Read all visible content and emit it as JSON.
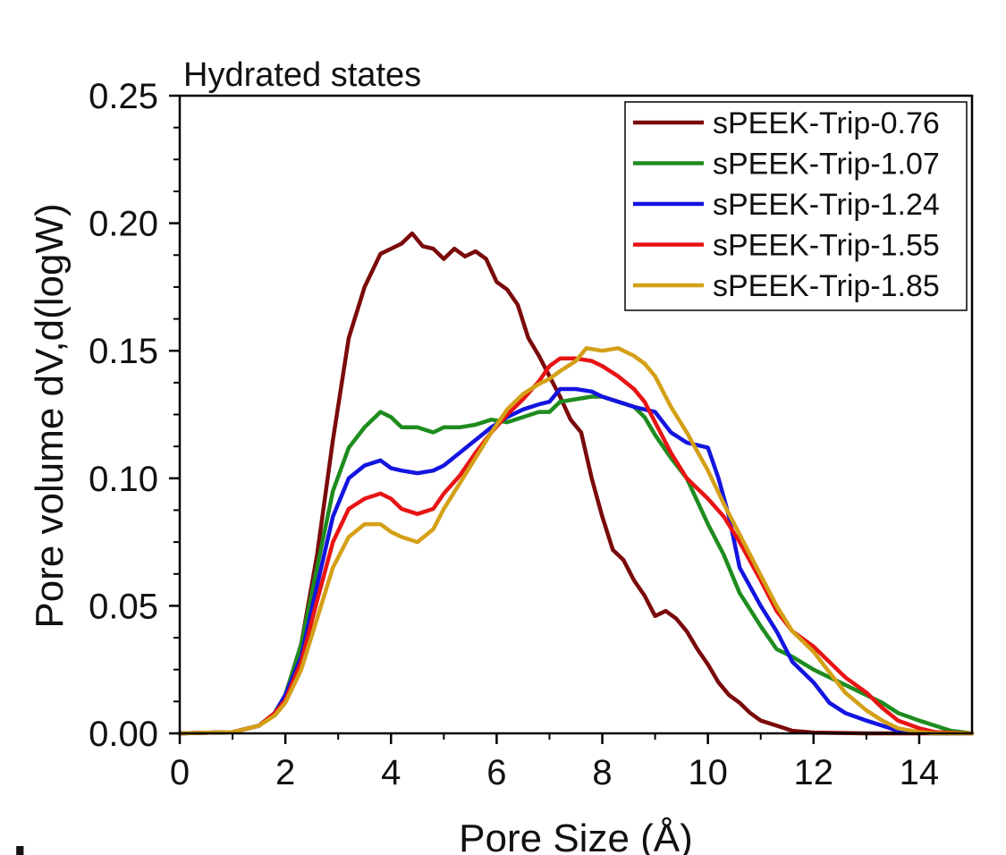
{
  "chart_data": {
    "type": "line",
    "title": "Hydrated states",
    "xlabel": "Pore Size (Å)",
    "ylabel": "Pore volume dV,d(logW)",
    "xlim": [
      0,
      15
    ],
    "ylim": [
      0,
      0.25
    ],
    "xticks": [
      0,
      2,
      4,
      6,
      8,
      10,
      12,
      14
    ],
    "xtick_labels": [
      "0",
      "2",
      "4",
      "6",
      "8",
      "10",
      "12",
      "14"
    ],
    "yticks": [
      0,
      0.05,
      0.1,
      0.15,
      0.2,
      0.25
    ],
    "ytick_labels": [
      "0.00",
      "0.05",
      "0.10",
      "0.15",
      "0.20",
      "0.25"
    ],
    "legend_position": "top-right",
    "grid": false,
    "panel_label": "b",
    "series": [
      {
        "name": "sPEEK-Trip-0.76",
        "color": "#7b0a0a",
        "x": [
          0,
          1.0,
          1.5,
          1.8,
          2.0,
          2.3,
          2.6,
          2.9,
          3.2,
          3.5,
          3.8,
          4.0,
          4.2,
          4.4,
          4.6,
          4.8,
          5.0,
          5.2,
          5.4,
          5.6,
          5.8,
          6.0,
          6.2,
          6.4,
          6.6,
          6.8,
          7.0,
          7.2,
          7.4,
          7.6,
          7.8,
          8.0,
          8.2,
          8.4,
          8.6,
          8.8,
          9.0,
          9.2,
          9.4,
          9.6,
          9.8,
          10.0,
          10.2,
          10.4,
          10.6,
          10.8,
          11.0,
          11.3,
          11.6,
          12.0,
          13.0,
          15.0
        ],
        "y": [
          0,
          0.0005,
          0.003,
          0.008,
          0.015,
          0.035,
          0.07,
          0.115,
          0.155,
          0.175,
          0.188,
          0.19,
          0.192,
          0.196,
          0.191,
          0.19,
          0.186,
          0.19,
          0.187,
          0.189,
          0.186,
          0.177,
          0.174,
          0.168,
          0.155,
          0.148,
          0.14,
          0.132,
          0.123,
          0.118,
          0.1,
          0.085,
          0.072,
          0.068,
          0.06,
          0.054,
          0.046,
          0.048,
          0.045,
          0.04,
          0.033,
          0.027,
          0.02,
          0.015,
          0.012,
          0.008,
          0.005,
          0.003,
          0.001,
          0.0003,
          0,
          0
        ]
      },
      {
        "name": "sPEEK-Trip-1.07",
        "color": "#1e8c1e",
        "x": [
          0,
          1.0,
          1.5,
          1.8,
          2.0,
          2.3,
          2.6,
          2.9,
          3.2,
          3.5,
          3.8,
          4.0,
          4.2,
          4.5,
          4.8,
          5.0,
          5.3,
          5.6,
          5.9,
          6.2,
          6.5,
          6.8,
          7.0,
          7.2,
          7.5,
          7.8,
          8.0,
          8.3,
          8.6,
          8.8,
          9.0,
          9.3,
          9.6,
          10.0,
          10.3,
          10.6,
          11.0,
          11.3,
          11.6,
          12.0,
          12.3,
          12.6,
          13.0,
          13.3,
          13.6,
          14.0,
          14.3,
          14.6,
          15.0
        ],
        "y": [
          0,
          0.0005,
          0.003,
          0.008,
          0.015,
          0.035,
          0.065,
          0.095,
          0.112,
          0.12,
          0.126,
          0.124,
          0.12,
          0.12,
          0.118,
          0.12,
          0.12,
          0.121,
          0.123,
          0.122,
          0.124,
          0.126,
          0.126,
          0.13,
          0.131,
          0.132,
          0.132,
          0.13,
          0.128,
          0.124,
          0.117,
          0.108,
          0.1,
          0.082,
          0.07,
          0.055,
          0.042,
          0.033,
          0.03,
          0.025,
          0.022,
          0.019,
          0.015,
          0.012,
          0.008,
          0.005,
          0.003,
          0.001,
          0
        ]
      },
      {
        "name": "sPEEK-Trip-1.24",
        "color": "#1414e0",
        "x": [
          0,
          1.0,
          1.5,
          1.8,
          2.0,
          2.3,
          2.6,
          2.9,
          3.2,
          3.5,
          3.8,
          4.0,
          4.2,
          4.5,
          4.8,
          5.0,
          5.3,
          5.6,
          5.9,
          6.2,
          6.5,
          6.8,
          7.0,
          7.2,
          7.5,
          7.8,
          8.0,
          8.3,
          8.6,
          8.8,
          9.0,
          9.3,
          9.6,
          9.8,
          10.0,
          10.2,
          10.4,
          10.6,
          11.0,
          11.3,
          11.6,
          12.0,
          12.3,
          12.6,
          13.0,
          13.3,
          13.6,
          14.0,
          14.3,
          15.0
        ],
        "y": [
          0,
          0.0005,
          0.003,
          0.008,
          0.015,
          0.03,
          0.058,
          0.085,
          0.1,
          0.105,
          0.107,
          0.104,
          0.103,
          0.102,
          0.103,
          0.105,
          0.11,
          0.115,
          0.12,
          0.124,
          0.127,
          0.129,
          0.13,
          0.135,
          0.135,
          0.134,
          0.132,
          0.13,
          0.128,
          0.127,
          0.126,
          0.118,
          0.114,
          0.113,
          0.112,
          0.1,
          0.085,
          0.065,
          0.05,
          0.04,
          0.028,
          0.02,
          0.012,
          0.008,
          0.005,
          0.003,
          0.001,
          0.0005,
          0,
          0
        ]
      },
      {
        "name": "sPEEK-Trip-1.55",
        "color": "#e81414",
        "x": [
          0,
          1.0,
          1.5,
          1.8,
          2.0,
          2.3,
          2.6,
          2.9,
          3.2,
          3.5,
          3.8,
          4.0,
          4.2,
          4.5,
          4.8,
          5.0,
          5.3,
          5.6,
          5.9,
          6.2,
          6.5,
          6.8,
          7.0,
          7.2,
          7.5,
          7.8,
          8.0,
          8.3,
          8.6,
          8.8,
          9.0,
          9.3,
          9.6,
          10.0,
          10.3,
          10.6,
          11.0,
          11.3,
          11.6,
          12.0,
          12.3,
          12.6,
          13.0,
          13.3,
          13.6,
          14.0,
          14.3,
          15.0
        ],
        "y": [
          0,
          0.0005,
          0.003,
          0.008,
          0.013,
          0.028,
          0.052,
          0.075,
          0.088,
          0.092,
          0.094,
          0.092,
          0.088,
          0.086,
          0.088,
          0.094,
          0.101,
          0.11,
          0.118,
          0.125,
          0.131,
          0.138,
          0.144,
          0.147,
          0.147,
          0.146,
          0.144,
          0.14,
          0.135,
          0.13,
          0.122,
          0.11,
          0.1,
          0.092,
          0.085,
          0.075,
          0.06,
          0.048,
          0.04,
          0.034,
          0.028,
          0.022,
          0.016,
          0.01,
          0.005,
          0.002,
          0.0005,
          0
        ]
      },
      {
        "name": "sPEEK-Trip-1.85",
        "color": "#d4a017",
        "x": [
          0,
          1.0,
          1.5,
          1.8,
          2.0,
          2.3,
          2.6,
          2.9,
          3.2,
          3.5,
          3.8,
          4.0,
          4.2,
          4.5,
          4.8,
          5.0,
          5.3,
          5.6,
          5.9,
          6.2,
          6.5,
          6.8,
          7.0,
          7.2,
          7.5,
          7.7,
          8.0,
          8.3,
          8.6,
          8.8,
          9.0,
          9.3,
          9.6,
          10.0,
          10.3,
          10.6,
          11.0,
          11.3,
          11.6,
          12.0,
          12.3,
          12.6,
          13.0,
          13.3,
          13.6,
          14.0,
          14.3,
          15.0
        ],
        "y": [
          0,
          0.0005,
          0.003,
          0.007,
          0.012,
          0.025,
          0.045,
          0.065,
          0.077,
          0.082,
          0.082,
          0.079,
          0.077,
          0.075,
          0.08,
          0.088,
          0.098,
          0.108,
          0.118,
          0.127,
          0.133,
          0.137,
          0.139,
          0.142,
          0.146,
          0.151,
          0.15,
          0.151,
          0.148,
          0.145,
          0.14,
          0.128,
          0.118,
          0.103,
          0.09,
          0.078,
          0.062,
          0.05,
          0.04,
          0.032,
          0.024,
          0.016,
          0.009,
          0.005,
          0.002,
          0.0005,
          0,
          0
        ]
      }
    ]
  }
}
